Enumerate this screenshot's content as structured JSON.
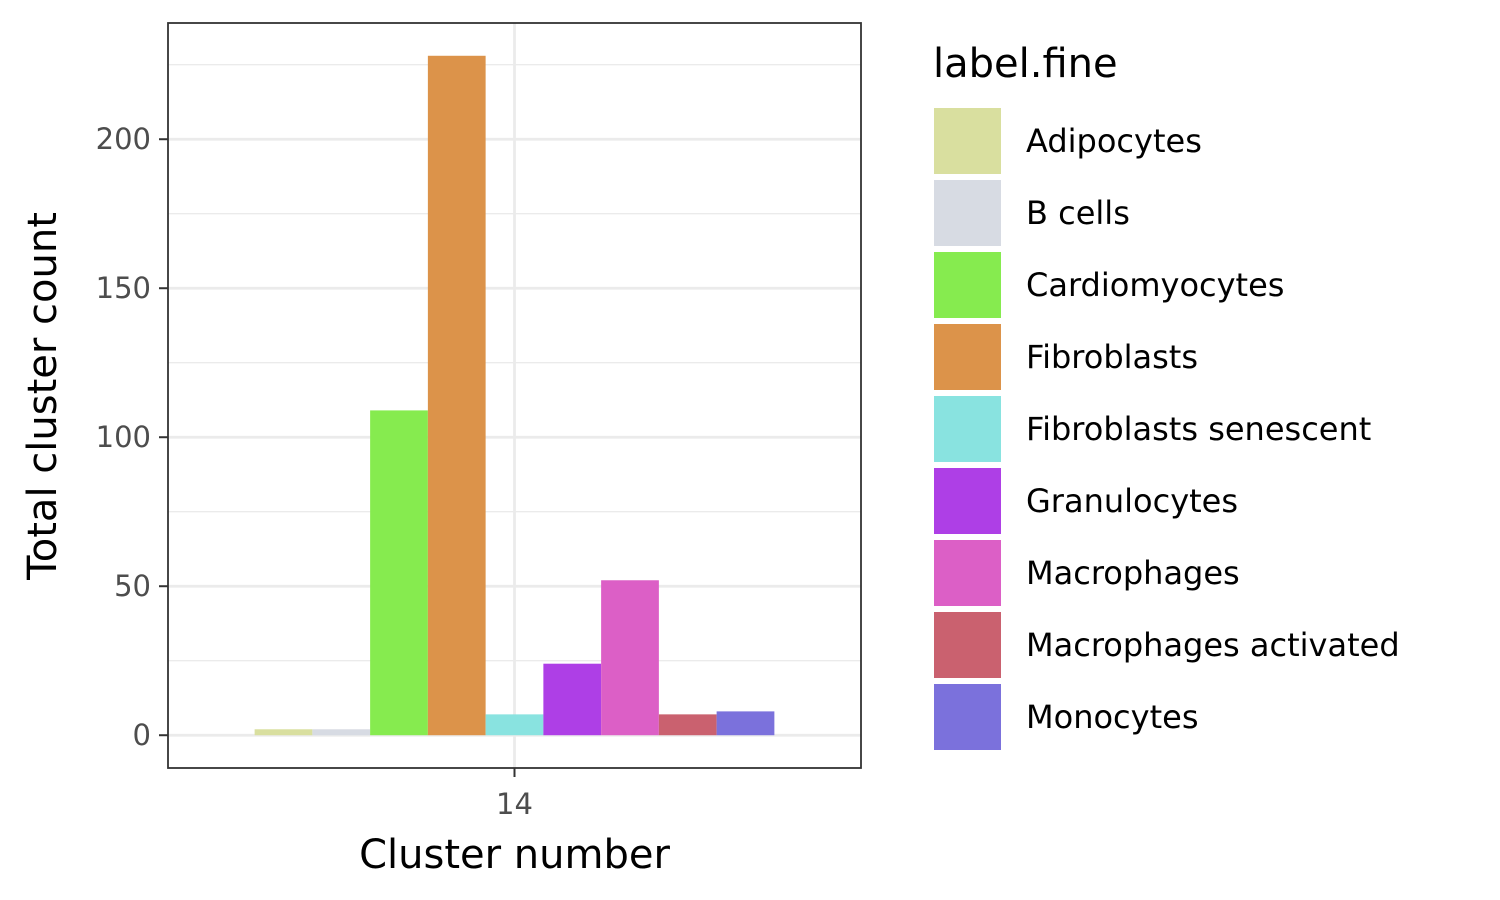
{
  "chart_data": {
    "type": "bar",
    "title": "",
    "xlabel": "Cluster number",
    "ylabel": "Total cluster count",
    "categories": [
      "14"
    ],
    "ylim": [
      -11,
      239
    ],
    "yticks": [
      0,
      50,
      100,
      150,
      200
    ],
    "grid": true,
    "legend_title": "label.fine",
    "legend_position": "right",
    "series": [
      {
        "name": "Adipocytes",
        "color": "#d9df9f",
        "values": [
          2
        ]
      },
      {
        "name": "B cells",
        "color": "#d7dbe3",
        "values": [
          2
        ]
      },
      {
        "name": "Cardiomyocytes",
        "color": "#86eb4f",
        "values": [
          109
        ]
      },
      {
        "name": "Fibroblasts",
        "color": "#dc934a",
        "values": [
          228
        ]
      },
      {
        "name": "Fibroblasts senescent",
        "color": "#89e3e0",
        "values": [
          7
        ]
      },
      {
        "name": "Granulocytes",
        "color": "#ae3fe6",
        "values": [
          24
        ]
      },
      {
        "name": "Macrophages",
        "color": "#dc5fc6",
        "values": [
          52
        ]
      },
      {
        "name": "Macrophages activated",
        "color": "#ca616f",
        "values": [
          7
        ]
      },
      {
        "name": "Monocytes",
        "color": "#7b71dc",
        "values": [
          8
        ]
      }
    ]
  }
}
